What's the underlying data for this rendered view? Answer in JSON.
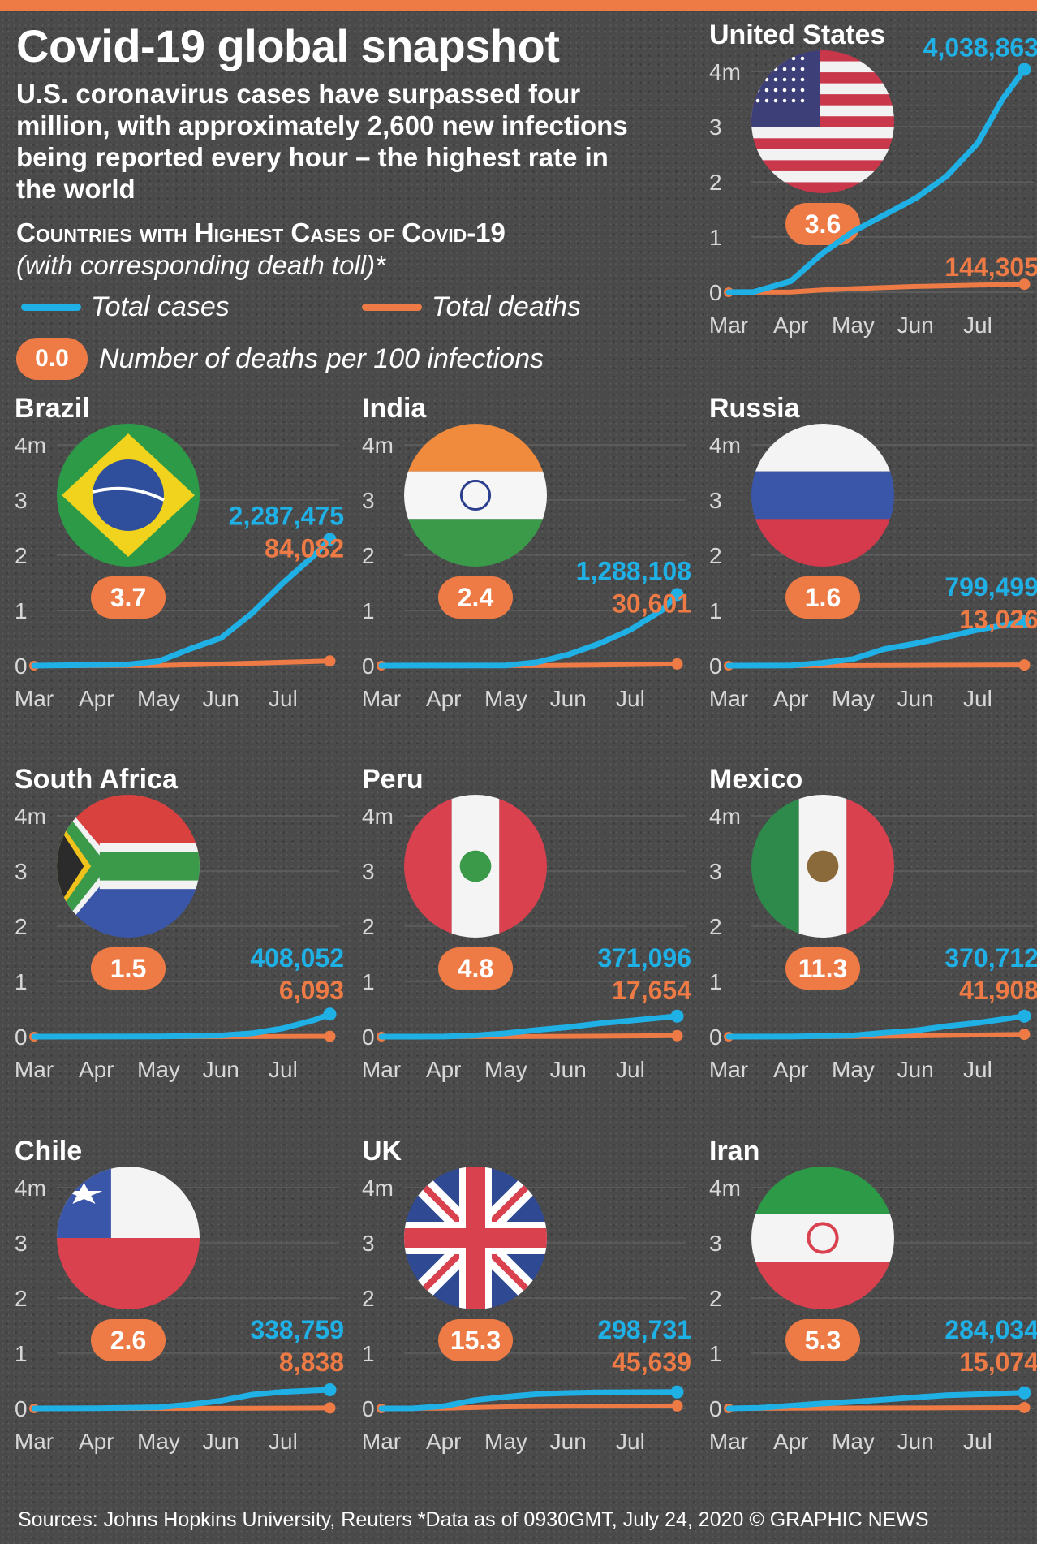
{
  "title": "Covid-19 global snapshot",
  "subtitle": "U.S. coronavirus cases have surpassed four million, with approximately 2,600 new infections being reported every hour – the highest rate in the world",
  "section_title": "Countries with Highest Cases of Covid-19",
  "section_subtitle": "(with corresponding death toll)*",
  "legend": {
    "cases_label": "Total cases",
    "deaths_label": "Total deaths",
    "rate_sample": "0.0",
    "rate_label": "Number of deaths per 100 infections"
  },
  "footer": "Sources: Johns Hopkins University, Reuters  *Data as of 0930GMT, July 24, 2020  © GRAPHIC NEWS",
  "colors": {
    "cases": "#1fb1e6",
    "deaths": "#ee7b45",
    "background": "#4a4a4b",
    "grid": "#6a6a6a"
  },
  "chart_data": {
    "type": "line",
    "x": [
      "Mar",
      "Apr",
      "May",
      "Jun",
      "Jul"
    ],
    "y_ticks": [
      "4m",
      "3",
      "2",
      "1",
      "0"
    ],
    "ylim": [
      0,
      4000000
    ],
    "grid": true,
    "countries": [
      {
        "name": "United States",
        "flag": "us-flag",
        "cases_label": "4,038,863",
        "deaths_label": "144,305",
        "rate": "3.6",
        "cases": [
          [
            0.0,
            0
          ],
          [
            0.4,
            5000
          ],
          [
            1.0,
            200000
          ],
          [
            1.5,
            700000
          ],
          [
            2.0,
            1100000
          ],
          [
            2.5,
            1400000
          ],
          [
            3.0,
            1700000
          ],
          [
            3.5,
            2100000
          ],
          [
            4.0,
            2700000
          ],
          [
            4.4,
            3500000
          ],
          [
            4.75,
            4038863
          ]
        ],
        "deaths": [
          [
            0.0,
            0
          ],
          [
            1.0,
            5000
          ],
          [
            1.5,
            40000
          ],
          [
            2.0,
            65000
          ],
          [
            3.0,
            105000
          ],
          [
            4.0,
            128000
          ],
          [
            4.75,
            144305
          ]
        ]
      },
      {
        "name": "Brazil",
        "flag": "brazil-flag",
        "cases_label": "2,287,475",
        "deaths_label": "84,082",
        "rate": "3.7",
        "cases": [
          [
            0.0,
            0
          ],
          [
            1.5,
            20000
          ],
          [
            2.0,
            80000
          ],
          [
            2.5,
            300000
          ],
          [
            3.0,
            500000
          ],
          [
            3.5,
            950000
          ],
          [
            4.0,
            1500000
          ],
          [
            4.5,
            2000000
          ],
          [
            4.75,
            2287475
          ]
        ],
        "deaths": [
          [
            0.0,
            0
          ],
          [
            2.0,
            5000
          ],
          [
            3.0,
            30000
          ],
          [
            4.0,
            60000
          ],
          [
            4.75,
            84082
          ]
        ]
      },
      {
        "name": "India",
        "flag": "india-flag",
        "cases_label": "1,288,108",
        "deaths_label": "30,601",
        "rate": "2.4",
        "cases": [
          [
            0.0,
            0
          ],
          [
            2.0,
            5000
          ],
          [
            2.5,
            60000
          ],
          [
            3.0,
            200000
          ],
          [
            3.5,
            400000
          ],
          [
            4.0,
            650000
          ],
          [
            4.5,
            1000000
          ],
          [
            4.75,
            1288108
          ]
        ],
        "deaths": [
          [
            0.0,
            0
          ],
          [
            2.5,
            2000
          ],
          [
            3.5,
            12000
          ],
          [
            4.75,
            30601
          ]
        ]
      },
      {
        "name": "Russia",
        "flag": "russia-flag",
        "cases_label": "799,499",
        "deaths_label": "13,026",
        "rate": "1.6",
        "cases": [
          [
            0.0,
            0
          ],
          [
            1.0,
            5000
          ],
          [
            1.5,
            50000
          ],
          [
            2.0,
            120000
          ],
          [
            2.5,
            300000
          ],
          [
            3.0,
            400000
          ],
          [
            3.5,
            520000
          ],
          [
            4.0,
            650000
          ],
          [
            4.75,
            799499
          ]
        ],
        "deaths": [
          [
            0.0,
            0
          ],
          [
            2.0,
            2000
          ],
          [
            3.0,
            6000
          ],
          [
            4.75,
            13026
          ]
        ]
      },
      {
        "name": "South Africa",
        "flag": "south-africa-flag",
        "cases_label": "408,052",
        "deaths_label": "6,093",
        "rate": "1.5",
        "cases": [
          [
            0.0,
            0
          ],
          [
            2.0,
            5000
          ],
          [
            3.0,
            20000
          ],
          [
            3.5,
            60000
          ],
          [
            4.0,
            150000
          ],
          [
            4.5,
            300000
          ],
          [
            4.75,
            408052
          ]
        ],
        "deaths": [
          [
            0.0,
            0
          ],
          [
            3.0,
            500
          ],
          [
            4.75,
            6093
          ]
        ]
      },
      {
        "name": "Peru",
        "flag": "peru-flag",
        "cases_label": "371,096",
        "deaths_label": "17,654",
        "rate": "4.8",
        "cases": [
          [
            0.0,
            0
          ],
          [
            1.0,
            2000
          ],
          [
            1.5,
            20000
          ],
          [
            2.0,
            60000
          ],
          [
            2.5,
            120000
          ],
          [
            3.0,
            170000
          ],
          [
            3.5,
            240000
          ],
          [
            4.0,
            290000
          ],
          [
            4.75,
            371096
          ]
        ],
        "deaths": [
          [
            0.0,
            0
          ],
          [
            2.0,
            2000
          ],
          [
            3.0,
            6000
          ],
          [
            4.75,
            17654
          ]
        ]
      },
      {
        "name": "Mexico",
        "flag": "mexico-flag",
        "cases_label": "370,712",
        "deaths_label": "41,908",
        "rate": "11.3",
        "cases": [
          [
            0.0,
            0
          ],
          [
            1.0,
            2000
          ],
          [
            2.0,
            20000
          ],
          [
            2.5,
            70000
          ],
          [
            3.0,
            110000
          ],
          [
            3.5,
            190000
          ],
          [
            4.0,
            250000
          ],
          [
            4.75,
            370712
          ]
        ],
        "deaths": [
          [
            0.0,
            0
          ],
          [
            2.0,
            3000
          ],
          [
            3.0,
            15000
          ],
          [
            4.0,
            30000
          ],
          [
            4.75,
            41908
          ]
        ]
      },
      {
        "name": "Chile",
        "flag": "chile-flag",
        "cases_label": "338,759",
        "deaths_label": "8,838",
        "rate": "2.6",
        "cases": [
          [
            0.0,
            0
          ],
          [
            1.0,
            3000
          ],
          [
            2.0,
            20000
          ],
          [
            2.5,
            70000
          ],
          [
            3.0,
            140000
          ],
          [
            3.5,
            250000
          ],
          [
            4.0,
            300000
          ],
          [
            4.75,
            338759
          ]
        ],
        "deaths": [
          [
            0.0,
            0
          ],
          [
            2.0,
            500
          ],
          [
            3.5,
            5000
          ],
          [
            4.75,
            8838
          ]
        ]
      },
      {
        "name": "UK",
        "flag": "uk-flag",
        "cases_label": "298,731",
        "deaths_label": "45,639",
        "rate": "15.3",
        "cases": [
          [
            0.0,
            0
          ],
          [
            0.5,
            2000
          ],
          [
            1.0,
            40000
          ],
          [
            1.5,
            150000
          ],
          [
            2.0,
            210000
          ],
          [
            2.5,
            260000
          ],
          [
            3.0,
            280000
          ],
          [
            3.5,
            290000
          ],
          [
            4.75,
            298731
          ]
        ],
        "deaths": [
          [
            0.0,
            0
          ],
          [
            1.0,
            5000
          ],
          [
            2.0,
            30000
          ],
          [
            3.0,
            40000
          ],
          [
            4.75,
            45639
          ]
        ]
      },
      {
        "name": "Iran",
        "flag": "iran-flag",
        "cases_label": "284,034",
        "deaths_label": "15,074",
        "rate": "5.3",
        "cases": [
          [
            0.0,
            0
          ],
          [
            0.5,
            10000
          ],
          [
            1.0,
            50000
          ],
          [
            1.5,
            90000
          ],
          [
            2.0,
            120000
          ],
          [
            2.5,
            160000
          ],
          [
            3.0,
            200000
          ],
          [
            3.5,
            240000
          ],
          [
            4.75,
            284034
          ]
        ],
        "deaths": [
          [
            0.0,
            0
          ],
          [
            1.0,
            3000
          ],
          [
            2.0,
            7000
          ],
          [
            3.5,
            11000
          ],
          [
            4.75,
            15074
          ]
        ]
      }
    ]
  }
}
